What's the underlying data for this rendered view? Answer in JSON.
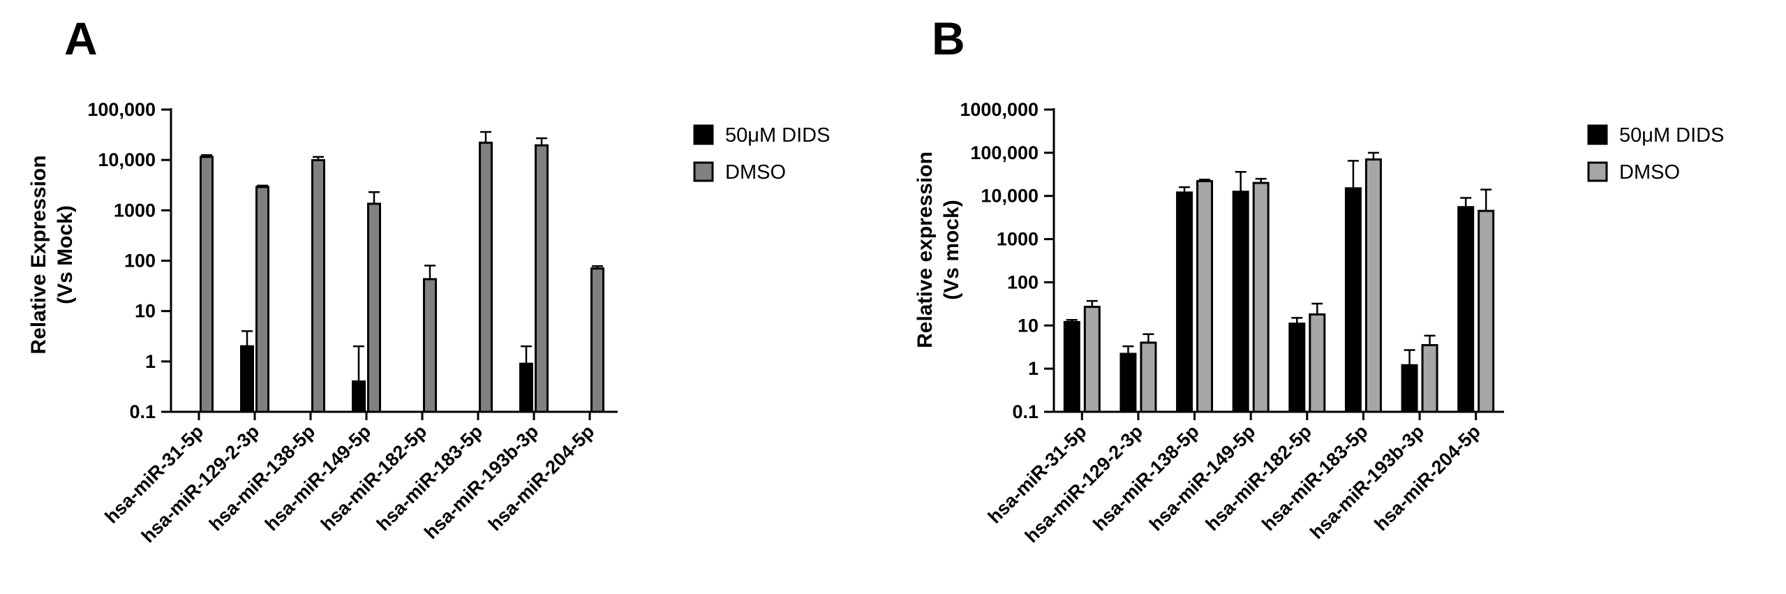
{
  "chart_data": [
    {
      "panel": "A",
      "type": "bar",
      "scale": "log",
      "ylabel": [
        "Relative Expression",
        "(Vs Mock)"
      ],
      "ylim": [
        0.1,
        100000
      ],
      "yticks": [
        {
          "value": 0.1,
          "label": "0.1"
        },
        {
          "value": 1,
          "label": "1"
        },
        {
          "value": 10,
          "label": "10"
        },
        {
          "value": 100,
          "label": "100"
        },
        {
          "value": 1000,
          "label": "1000"
        },
        {
          "value": 10000,
          "label": "10,000"
        },
        {
          "value": 100000,
          "label": "100,000"
        }
      ],
      "categories": [
        "hsa-miR-31-5p",
        "hsa-miR-129-2-3p",
        "hsa-miR-138-5p",
        "hsa-miR-149-5p",
        "hsa-miR-182-5p",
        "hsa-miR-183-5p",
        "hsa-miR-193b-3p",
        "hsa-miR-204-5p"
      ],
      "series": [
        {
          "name": "50μM DIDS",
          "color": "#000000",
          "values": [
            null,
            2,
            null,
            0.4,
            null,
            null,
            0.9,
            null
          ],
          "error_upper": [
            null,
            4,
            null,
            2,
            null,
            null,
            2,
            null
          ]
        },
        {
          "name": "DMSO",
          "color": "#808080",
          "values": [
            11500,
            2900,
            9900,
            1350,
            43,
            22000,
            19500,
            70
          ],
          "error_upper": [
            12500,
            3100,
            11500,
            2300,
            80,
            36000,
            27000,
            78
          ]
        }
      ],
      "legend_position": "right"
    },
    {
      "panel": "B",
      "type": "bar",
      "scale": "log",
      "ylabel": [
        "Relative expression",
        "(Vs mock)"
      ],
      "ylim": [
        0.1,
        1000000
      ],
      "yticks": [
        {
          "value": 0.1,
          "label": "0.1"
        },
        {
          "value": 1,
          "label": "1"
        },
        {
          "value": 10,
          "label": "10"
        },
        {
          "value": 100,
          "label": "100"
        },
        {
          "value": 1000,
          "label": "1000"
        },
        {
          "value": 10000,
          "label": "10,000"
        },
        {
          "value": 100000,
          "label": "100,000"
        },
        {
          "value": 1000000,
          "label": "1000,000"
        }
      ],
      "categories": [
        "hsa-miR-31-5p",
        "hsa-miR-129-2-3p",
        "hsa-miR-138-5p",
        "hsa-miR-149-5p",
        "hsa-miR-182-5p",
        "hsa-miR-183-5p",
        "hsa-miR-193b-3p",
        "hsa-miR-204-5p"
      ],
      "series": [
        {
          "name": "50μM DIDS",
          "color": "#000000",
          "values": [
            12,
            2.2,
            12000,
            12500,
            11,
            15000,
            1.2,
            5500
          ],
          "error_upper": [
            13.5,
            3.3,
            16000,
            36000,
            15,
            65000,
            2.7,
            9000
          ]
        },
        {
          "name": "DMSO",
          "color": "#a6a6a6",
          "values": [
            27,
            4,
            22000,
            20000,
            18,
            70000,
            3.5,
            4500
          ],
          "error_upper": [
            37,
            6.3,
            24000,
            25000,
            32,
            100000,
            5.8,
            14000
          ]
        }
      ],
      "legend_position": "right"
    }
  ]
}
